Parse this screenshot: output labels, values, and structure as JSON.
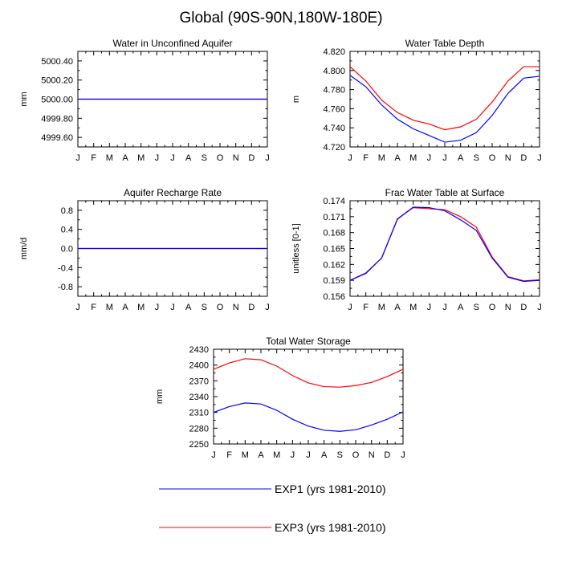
{
  "figure_title": "Global (90S-90N,180W-180E)",
  "colors": {
    "exp1": "#0000ff",
    "exp3": "#ff0000"
  },
  "legend": [
    {
      "key": "exp1",
      "label": "EXP1 (yrs 1981-2010)"
    },
    {
      "key": "exp3",
      "label": "EXP3 (yrs 1981-2010)"
    }
  ],
  "chart_data": [
    {
      "type": "line",
      "title": "Water in Unconfined Aquifer",
      "ylabel": "mm",
      "xlabel": "",
      "categories": [
        "J",
        "F",
        "M",
        "A",
        "M",
        "J",
        "J",
        "A",
        "S",
        "O",
        "N",
        "D",
        "J"
      ],
      "ylim": [
        4999.5,
        5000.5
      ],
      "yticks": [
        4999.6,
        4999.8,
        5000.0,
        5000.2,
        5000.4
      ],
      "ytick_labels": [
        "4999.60",
        "4999.80",
        "5000.00",
        "5000.20",
        "5000.40"
      ],
      "series": [
        {
          "key": "exp3",
          "values": [
            5000.0,
            5000.0,
            5000.0,
            5000.0,
            5000.0,
            5000.0,
            5000.0,
            5000.0,
            5000.0,
            5000.0,
            5000.0,
            5000.0,
            5000.0
          ]
        },
        {
          "key": "exp1",
          "values": [
            5000.0,
            5000.0,
            5000.0,
            5000.0,
            5000.0,
            5000.0,
            5000.0,
            5000.0,
            5000.0,
            5000.0,
            5000.0,
            5000.0,
            5000.0
          ]
        }
      ]
    },
    {
      "type": "line",
      "title": "Water Table Depth",
      "ylabel": "m",
      "xlabel": "",
      "categories": [
        "J",
        "F",
        "M",
        "A",
        "M",
        "J",
        "J",
        "A",
        "S",
        "O",
        "N",
        "D",
        "J"
      ],
      "ylim": [
        4.72,
        4.82
      ],
      "yticks": [
        4.72,
        4.74,
        4.76,
        4.78,
        4.8,
        4.82
      ],
      "ytick_labels": [
        "4.720",
        "4.740",
        "4.760",
        "4.780",
        "4.800",
        "4.820"
      ],
      "series": [
        {
          "key": "exp3",
          "values": [
            4.804,
            4.789,
            4.769,
            4.756,
            4.748,
            4.744,
            4.738,
            4.741,
            4.749,
            4.767,
            4.789,
            4.804,
            4.804
          ]
        },
        {
          "key": "exp1",
          "values": [
            4.795,
            4.783,
            4.764,
            4.749,
            4.739,
            4.732,
            4.725,
            4.727,
            4.735,
            4.753,
            4.776,
            4.792,
            4.794
          ]
        }
      ]
    },
    {
      "type": "line",
      "title": "Aquifer Recharge Rate",
      "ylabel": "mm/d",
      "xlabel": "",
      "categories": [
        "J",
        "F",
        "M",
        "A",
        "M",
        "J",
        "J",
        "A",
        "S",
        "O",
        "N",
        "D",
        "J"
      ],
      "ylim": [
        -1.0,
        1.0
      ],
      "yticks": [
        -0.8,
        -0.4,
        0.0,
        0.4,
        0.8
      ],
      "ytick_labels": [
        "-0.8",
        "-0.4",
        "0.0",
        "0.4",
        "0.8"
      ],
      "series": [
        {
          "key": "exp3",
          "values": [
            0,
            0,
            0,
            0,
            0,
            0,
            0,
            0,
            0,
            0,
            0,
            0,
            0
          ]
        },
        {
          "key": "exp1",
          "values": [
            0,
            0,
            0,
            0,
            0,
            0,
            0,
            0,
            0,
            0,
            0,
            0,
            0
          ]
        }
      ]
    },
    {
      "type": "line",
      "title": "Frac Water Table at Surface",
      "ylabel": "unitless [0-1]",
      "xlabel": "",
      "categories": [
        "J",
        "F",
        "M",
        "A",
        "M",
        "J",
        "J",
        "A",
        "S",
        "O",
        "N",
        "D",
        "J"
      ],
      "ylim": [
        0.156,
        0.174
      ],
      "yticks": [
        0.156,
        0.159,
        0.162,
        0.165,
        0.168,
        0.171,
        0.174
      ],
      "ytick_labels": [
        "0.156",
        "0.159",
        "0.162",
        "0.165",
        "0.168",
        "0.171",
        "0.174"
      ],
      "series": [
        {
          "key": "exp3",
          "values": [
            0.159,
            0.1604,
            0.1632,
            0.1706,
            0.1727,
            0.1725,
            0.1723,
            0.171,
            0.169,
            0.1634,
            0.1597,
            0.1589,
            0.1591
          ]
        },
        {
          "key": "exp1",
          "values": [
            0.159,
            0.1603,
            0.1632,
            0.1705,
            0.1728,
            0.1727,
            0.1721,
            0.1704,
            0.1684,
            0.1632,
            0.1596,
            0.1588,
            0.159
          ]
        }
      ]
    },
    {
      "type": "line",
      "title": "Total Water Storage",
      "ylabel": "mm",
      "xlabel": "",
      "categories": [
        "J",
        "F",
        "M",
        "A",
        "M",
        "J",
        "J",
        "A",
        "S",
        "O",
        "N",
        "D",
        "J"
      ],
      "ylim": [
        2250,
        2430
      ],
      "yticks": [
        2250,
        2280,
        2310,
        2340,
        2370,
        2400,
        2430
      ],
      "ytick_labels": [
        "2250",
        "2280",
        "2310",
        "2340",
        "2370",
        "2400",
        "2430"
      ],
      "series": [
        {
          "key": "exp3",
          "values": [
            2392,
            2404,
            2412,
            2410,
            2398,
            2380,
            2366,
            2359,
            2358,
            2361,
            2367,
            2378,
            2392
          ]
        },
        {
          "key": "exp1",
          "values": [
            2310,
            2321,
            2328,
            2326,
            2314,
            2297,
            2284,
            2276,
            2274,
            2277,
            2286,
            2297,
            2311
          ]
        }
      ]
    }
  ]
}
